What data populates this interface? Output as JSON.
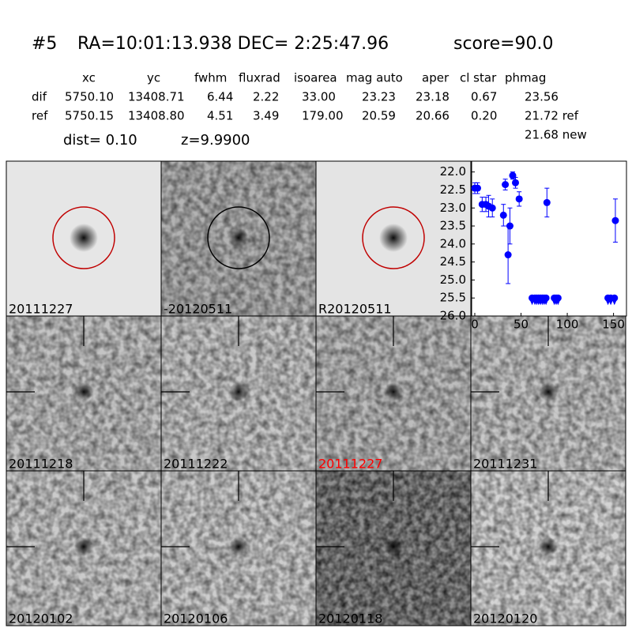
{
  "header": {
    "id": "#5",
    "coords": "RA=10:01:13.938 DEC= 2:25:47.96",
    "score": "score=90.0"
  },
  "table": {
    "columns": [
      "xc",
      "yc",
      "fwhm",
      "fluxrad",
      "isoarea",
      "mag auto",
      "aper",
      "cl star",
      "phmag"
    ],
    "rows": [
      [
        "dif",
        "5750.10",
        "13408.71",
        "6.44",
        "2.22",
        "33.00",
        "23.23",
        "23.18",
        "0.67",
        "23.56"
      ],
      [
        "ref",
        "5750.15",
        "13408.80",
        "4.51",
        "3.49",
        "179.00",
        "20.59",
        "20.66",
        "0.20",
        "21.72 ref"
      ]
    ],
    "extra": "21.68 new"
  },
  "dist": "dist=  0.10",
  "z": "z=9.9900",
  "panels": [
    {
      "label": "20111227"
    },
    {
      "label": "-20120511"
    },
    {
      "label": "R20120511"
    },
    {
      "label": "20111218"
    },
    {
      "label": "20111222"
    },
    {
      "label": "20111227",
      "color": "#ff0000"
    },
    {
      "label": "20111231"
    },
    {
      "label": "20120102"
    },
    {
      "label": "20120106"
    },
    {
      "label": "20120118"
    },
    {
      "label": "20120120"
    }
  ],
  "chart_data": {
    "type": "errorbar",
    "color": "#0000ff",
    "x": [
      0,
      3,
      8,
      12,
      15,
      19,
      31,
      33,
      36,
      38,
      41,
      44,
      48,
      78,
      152
    ],
    "values": [
      22.45,
      22.45,
      22.9,
      22.9,
      22.95,
      23.0,
      23.2,
      22.35,
      24.3,
      23.5,
      22.1,
      22.3,
      22.75,
      22.85,
      23.35
    ],
    "errors": [
      0.15,
      0.15,
      0.2,
      0.2,
      0.3,
      0.25,
      0.3,
      0.15,
      0.8,
      0.5,
      0.1,
      0.15,
      0.2,
      0.4,
      0.6
    ],
    "limit_x": [
      62,
      65,
      67,
      69,
      71,
      73,
      75,
      77,
      86,
      88,
      90,
      144,
      147,
      151
    ],
    "limit_values": [
      25.5,
      25.5,
      25.5,
      25.5,
      25.5,
      25.5,
      25.5,
      25.5,
      25.5,
      25.5,
      25.5,
      25.5,
      25.5,
      25.5
    ],
    "xlim": [
      -3.4,
      164
    ],
    "ylim": [
      26.0,
      21.7
    ],
    "xticks": [
      0,
      50,
      100,
      150
    ],
    "yticks": [
      {
        "value": 22.0,
        "label": "22.0"
      },
      {
        "value": 22.5,
        "label": "22.5"
      },
      {
        "value": 23.0,
        "label": "23.0"
      },
      {
        "value": 23.5,
        "label": "23.5"
      },
      {
        "value": 24.0,
        "label": "24.0"
      },
      {
        "value": 24.5,
        "label": "24.5"
      },
      {
        "value": 25.0,
        "label": "25.0"
      },
      {
        "value": 25.5,
        "label": "25.5"
      },
      {
        "value": 26.0,
        "label": "26.0"
      }
    ]
  }
}
